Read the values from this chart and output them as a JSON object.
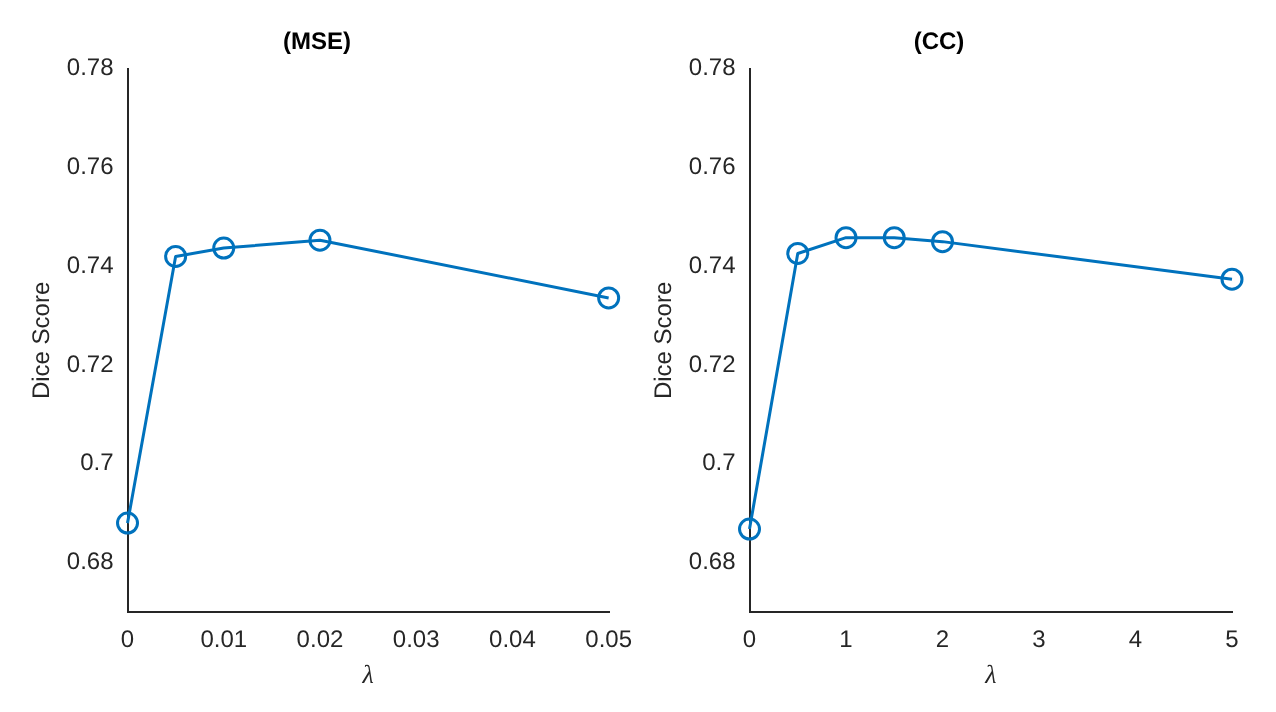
{
  "chart_data": [
    {
      "type": "line",
      "title": "(MSE)",
      "xlabel": "λ",
      "ylabel": "Dice Score",
      "x": [
        0,
        0.005,
        0.01,
        0.02,
        0.05
      ],
      "series": [
        {
          "color": "#0072bd",
          "values": [
            0.688,
            0.742,
            0.7437,
            0.7453,
            0.7336
          ]
        }
      ],
      "xlim": [
        0,
        0.05
      ],
      "xticks": [
        0,
        0.01,
        0.02,
        0.03,
        0.04,
        0.05
      ],
      "ylim": [
        0.67,
        0.78
      ],
      "yticks": [
        0.68,
        0.7,
        0.72,
        0.74,
        0.76,
        0.78
      ],
      "grid": false,
      "legend": false,
      "marker": "circle",
      "line_style": "solid"
    },
    {
      "type": "line",
      "title": "(CC)",
      "xlabel": "λ",
      "ylabel": "Dice Score",
      "x": [
        0,
        0.5,
        1,
        1.5,
        2,
        5
      ],
      "series": [
        {
          "color": "#0072bd",
          "values": [
            0.6868,
            0.7426,
            0.7458,
            0.7458,
            0.745,
            0.7374
          ]
        }
      ],
      "xlim": [
        0,
        5
      ],
      "xticks": [
        0,
        1,
        2,
        3,
        4,
        5
      ],
      "ylim": [
        0.67,
        0.78
      ],
      "yticks": [
        0.68,
        0.7,
        0.72,
        0.74,
        0.76,
        0.78
      ],
      "grid": false,
      "legend": false,
      "marker": "circle",
      "line_style": "solid"
    }
  ]
}
